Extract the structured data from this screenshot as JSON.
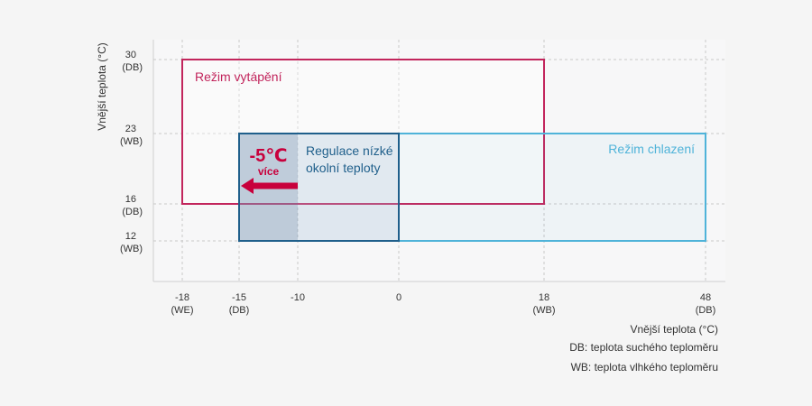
{
  "chart_data": {
    "type": "range-diagram",
    "xlabel": "Vnější teplota (°C)",
    "ylabel": "Vnější teplota (°C)",
    "notes": [
      "DB: teplota suchého teploměru",
      "WB: teplota vlhkého teploměru"
    ],
    "x_ticks": [
      {
        "value": -18,
        "label": "-18",
        "sub": "(WE)"
      },
      {
        "value": -15,
        "label": "-15",
        "sub": "(DB)"
      },
      {
        "value": -10,
        "label": "-10",
        "sub": ""
      },
      {
        "value": 0,
        "label": "0",
        "sub": ""
      },
      {
        "value": 18,
        "label": "18",
        "sub": "(WB)"
      },
      {
        "value": 48,
        "label": "48",
        "sub": "(DB)"
      }
    ],
    "y_ticks": [
      {
        "value": 30,
        "label": "30",
        "sub": "(DB)"
      },
      {
        "value": 23,
        "label": "23",
        "sub": "(WB)"
      },
      {
        "value": 16,
        "label": "16",
        "sub": "(DB)"
      },
      {
        "value": 12,
        "label": "12",
        "sub": "(WB)"
      }
    ],
    "ranges": [
      {
        "name": "heating",
        "label": [
          "Režim vytápění"
        ],
        "x": [
          -18,
          18
        ],
        "y": [
          16,
          30
        ],
        "color": "#c2255c"
      },
      {
        "name": "cooling",
        "label": [
          "Režim chlazení"
        ],
        "x": [
          0,
          48
        ],
        "y": [
          12,
          23
        ],
        "color": "#4fb3d9"
      },
      {
        "name": "low-ambient",
        "label": [
          "Regulace nízké",
          "okolní teploty"
        ],
        "x": [
          -15,
          0
        ],
        "y": [
          12,
          23
        ],
        "color": "#1f5f8b"
      }
    ],
    "extension": {
      "x": [
        -15,
        -10
      ],
      "y": [
        12,
        23
      ],
      "value_label": "-5℃",
      "sub_label": "více",
      "color": "#c8003c"
    }
  }
}
